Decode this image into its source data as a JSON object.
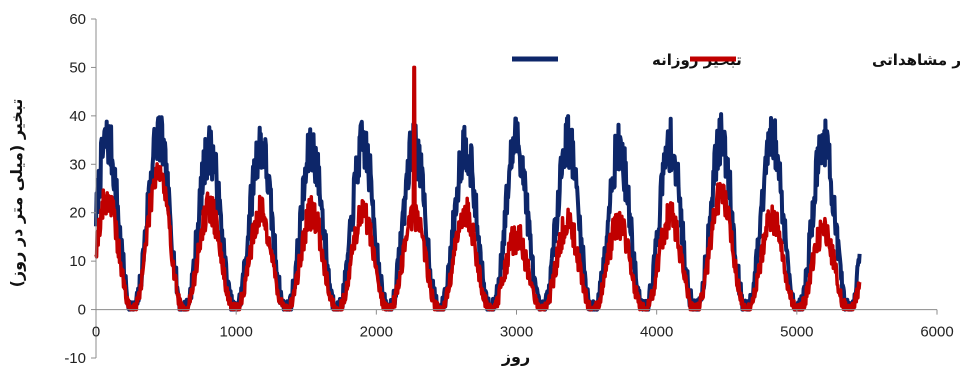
{
  "chart_data": {
    "type": "line",
    "title": "",
    "xlabel": "روز",
    "ylabel": "تبخیر (میلی متر در روز)",
    "xlim": [
      0,
      6000
    ],
    "ylim": [
      -10,
      60
    ],
    "x_ticks": [
      0,
      1000,
      2000,
      3000,
      4000,
      5000,
      6000
    ],
    "y_ticks": [
      -10,
      0,
      10,
      20,
      30,
      40,
      50,
      60
    ],
    "grid": false,
    "legend_position": "top-right",
    "series": [
      {
        "name": "تبخیر روزانه",
        "color": "#0d2669",
        "x_range": [
          0,
          5450
        ],
        "period_days": 365,
        "seasonal_peak_values": [
          35,
          36,
          33,
          34,
          33,
          34,
          34,
          34,
          35,
          35,
          33,
          34,
          35,
          35,
          35
        ],
        "seasonal_trough_value": 0
      },
      {
        "name": "تبخیر مشاهداتی",
        "color": "#c00000",
        "x_range": [
          0,
          5450
        ],
        "period_days": 365,
        "seasonal_peak_values": [
          23,
          29,
          21,
          20,
          20,
          20,
          20,
          20,
          15,
          18,
          18,
          19,
          24,
          19,
          16
        ],
        "seasonal_trough_value": 0,
        "spike": {
          "x": 2270,
          "y": 50
        }
      }
    ]
  }
}
